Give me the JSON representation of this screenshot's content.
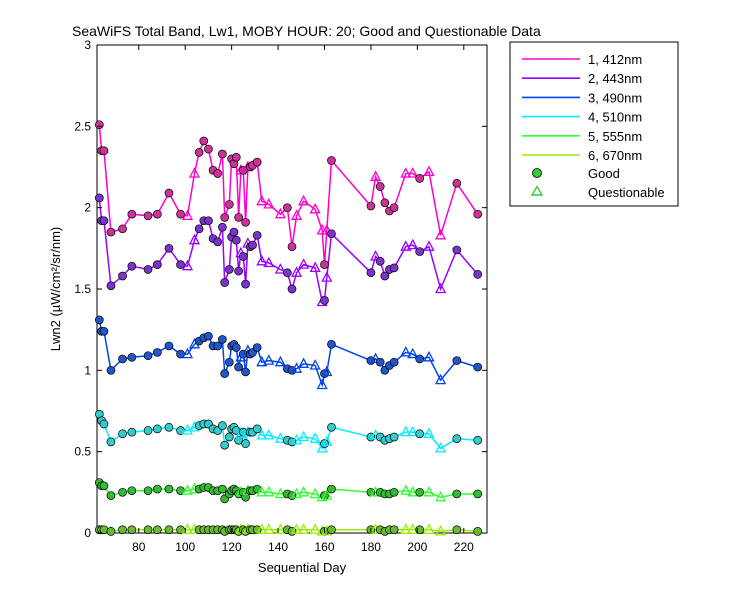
{
  "chart_data": {
    "type": "line",
    "title": "SeaWiFS Total Band, Lw1, MOBY HOUR: 20;  Good and Questionable Data",
    "xlabel": "Sequential Day",
    "ylabel": "Lwn2 (µW/cm²/sr/nm)",
    "xlim": [
      62,
      230
    ],
    "ylim": [
      0,
      3
    ],
    "xticks": [
      80,
      100,
      120,
      140,
      160,
      180,
      200,
      220
    ],
    "yticks": [
      0,
      0.5,
      1,
      1.5,
      2,
      2.5,
      3
    ],
    "xtick_labels": [
      "80",
      "100",
      "120",
      "140",
      "160",
      "180",
      "200",
      "220"
    ],
    "ytick_labels": [
      "0",
      "0.5",
      "1",
      "1.5",
      "2",
      "2.5",
      "3"
    ],
    "grid": false,
    "legend_position": "top-right, outside plot",
    "legend_markers": [
      {
        "label": "Good",
        "symbol": "circle",
        "color": "#33cc33"
      },
      {
        "label": "Questionable",
        "symbol": "triangle",
        "color": "#33cc33"
      }
    ],
    "x": [
      63,
      64,
      65,
      68,
      73,
      77,
      84,
      88,
      93,
      98,
      101,
      104,
      106,
      108,
      110,
      112,
      114,
      116,
      117,
      119,
      120,
      121,
      122,
      123,
      124,
      125,
      126,
      127,
      128,
      129,
      131,
      133,
      136,
      141,
      144,
      146,
      148,
      151,
      156,
      159,
      160,
      161,
      163,
      180,
      182,
      184,
      186,
      188,
      190,
      195,
      198,
      201,
      205,
      210,
      217,
      226
    ],
    "quality": [
      "G",
      "G",
      "G",
      "G",
      "G",
      "G",
      "G",
      "G",
      "G",
      "G",
      "Q",
      "Q",
      "G",
      "G",
      "G",
      "G",
      "G",
      "G",
      "G",
      "G",
      "G",
      "G",
      "G",
      "G",
      "Q",
      "G",
      "G",
      "Q",
      "G",
      "G",
      "G",
      "Q",
      "Q",
      "Q",
      "G",
      "G",
      "Q",
      "Q",
      "Q",
      "Q",
      "G",
      "Q",
      "G",
      "G",
      "Q",
      "G",
      "G",
      "G",
      "G",
      "Q",
      "Q",
      "G",
      "Q",
      "Q",
      "G",
      "G"
    ],
    "series": [
      {
        "name": "1, 412nm",
        "color": "#ff00cc",
        "marker_color": "#cc3399",
        "values": [
          2.51,
          2.35,
          2.35,
          1.85,
          1.87,
          1.96,
          1.95,
          1.96,
          2.09,
          1.96,
          1.95,
          2.21,
          2.34,
          2.41,
          2.36,
          2.23,
          2.21,
          2.33,
          1.94,
          2.02,
          2.3,
          2.27,
          2.31,
          1.94,
          2.23,
          2.23,
          1.91,
          2.25,
          2.25,
          2.26,
          2.28,
          2.04,
          2.02,
          1.96,
          2.0,
          1.76,
          1.95,
          2.04,
          1.99,
          1.86,
          1.65,
          1.86,
          2.29,
          2.01,
          2.19,
          2.13,
          2.03,
          1.98,
          2.0,
          2.21,
          2.21,
          2.18,
          2.22,
          1.83,
          2.15,
          1.96
        ]
      },
      {
        "name": "2, 443nm",
        "color": "#9900ff",
        "marker_color": "#7a33cc",
        "values": [
          2.06,
          1.92,
          1.92,
          1.52,
          1.58,
          1.64,
          1.62,
          1.65,
          1.75,
          1.65,
          1.64,
          1.8,
          1.87,
          1.92,
          1.92,
          1.81,
          1.79,
          1.88,
          1.54,
          1.62,
          1.82,
          1.85,
          1.8,
          1.61,
          1.72,
          1.7,
          1.53,
          1.78,
          1.76,
          1.77,
          1.83,
          1.67,
          1.66,
          1.62,
          1.6,
          1.5,
          1.6,
          1.65,
          1.63,
          1.42,
          1.43,
          1.57,
          1.84,
          1.6,
          1.7,
          1.67,
          1.58,
          1.62,
          1.63,
          1.76,
          1.77,
          1.73,
          1.76,
          1.5,
          1.74,
          1.59
        ]
      },
      {
        "name": "3, 490nm",
        "color": "#0044ee",
        "marker_color": "#2255cc",
        "values": [
          1.31,
          1.24,
          1.24,
          1.0,
          1.07,
          1.08,
          1.09,
          1.11,
          1.15,
          1.1,
          1.1,
          1.16,
          1.18,
          1.2,
          1.21,
          1.15,
          1.15,
          1.19,
          0.98,
          1.05,
          1.15,
          1.16,
          1.14,
          1.02,
          1.08,
          1.1,
          0.99,
          1.12,
          1.1,
          1.11,
          1.14,
          1.05,
          1.06,
          1.05,
          1.01,
          1.0,
          1.01,
          1.04,
          1.03,
          0.91,
          0.98,
          0.99,
          1.16,
          1.06,
          1.07,
          1.05,
          1.0,
          1.03,
          1.05,
          1.11,
          1.1,
          1.07,
          1.08,
          0.94,
          1.06,
          1.02
        ]
      },
      {
        "name": "4, 510nm",
        "color": "#00eeff",
        "marker_color": "#33cccc",
        "values": [
          0.73,
          0.69,
          0.67,
          0.56,
          0.61,
          0.62,
          0.63,
          0.64,
          0.65,
          0.63,
          0.63,
          0.65,
          0.66,
          0.67,
          0.67,
          0.64,
          0.63,
          0.66,
          0.54,
          0.59,
          0.64,
          0.65,
          0.63,
          0.57,
          0.61,
          0.62,
          0.55,
          0.62,
          0.62,
          0.62,
          0.64,
          0.6,
          0.6,
          0.58,
          0.57,
          0.56,
          0.57,
          0.59,
          0.58,
          0.52,
          0.55,
          0.56,
          0.65,
          0.59,
          0.6,
          0.59,
          0.57,
          0.58,
          0.59,
          0.62,
          0.62,
          0.61,
          0.61,
          0.52,
          0.58,
          0.57
        ]
      },
      {
        "name": "5, 555nm",
        "color": "#33ff33",
        "marker_color": "#33bb33",
        "values": [
          0.31,
          0.29,
          0.29,
          0.23,
          0.25,
          0.26,
          0.26,
          0.27,
          0.27,
          0.26,
          0.26,
          0.27,
          0.27,
          0.28,
          0.28,
          0.26,
          0.26,
          0.27,
          0.21,
          0.24,
          0.26,
          0.27,
          0.26,
          0.24,
          0.25,
          0.25,
          0.22,
          0.26,
          0.26,
          0.26,
          0.27,
          0.25,
          0.25,
          0.24,
          0.24,
          0.23,
          0.24,
          0.25,
          0.24,
          0.22,
          0.23,
          0.23,
          0.27,
          0.25,
          0.25,
          0.25,
          0.24,
          0.24,
          0.25,
          0.26,
          0.25,
          0.25,
          0.25,
          0.22,
          0.24,
          0.24
        ]
      },
      {
        "name": "6, 670nm",
        "color": "#99ee00",
        "marker_color": "#66bb33",
        "values": [
          0.02,
          0.02,
          0.02,
          0.01,
          0.02,
          0.02,
          0.02,
          0.02,
          0.02,
          0.02,
          0.02,
          0.02,
          0.02,
          0.02,
          0.02,
          0.02,
          0.02,
          0.02,
          0.01,
          0.02,
          0.02,
          0.02,
          0.02,
          0.01,
          0.02,
          0.02,
          0.01,
          0.02,
          0.02,
          0.02,
          0.02,
          0.02,
          0.02,
          0.02,
          0.02,
          0.01,
          0.02,
          0.02,
          0.02,
          0.01,
          0.01,
          0.01,
          0.02,
          0.02,
          0.02,
          0.02,
          0.01,
          0.02,
          0.02,
          0.02,
          0.02,
          0.02,
          0.02,
          0.01,
          0.02,
          0.01
        ]
      }
    ]
  }
}
